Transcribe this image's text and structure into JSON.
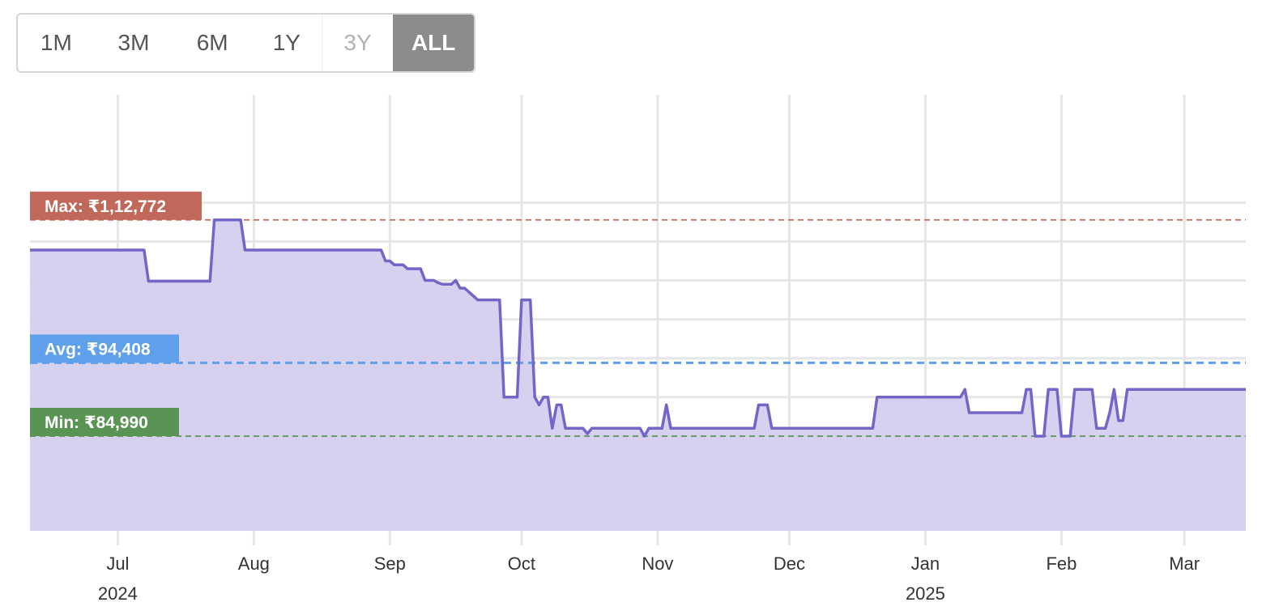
{
  "range_selector": {
    "buttons": [
      {
        "label": "1M",
        "state": "normal"
      },
      {
        "label": "3M",
        "state": "normal"
      },
      {
        "label": "6M",
        "state": "normal"
      },
      {
        "label": "1Y",
        "state": "normal"
      },
      {
        "label": "3Y",
        "state": "disabled"
      },
      {
        "label": "ALL",
        "state": "active"
      }
    ]
  },
  "colors": {
    "line": "#7366c9",
    "area": "#d4cfee",
    "grid": "#e6e6e6",
    "max": "#c0695a",
    "avg": "#5fa0ea",
    "min": "#5a9455",
    "button_active": "#8c8c8c"
  },
  "chart_data": {
    "type": "area",
    "currency": "₹",
    "xlim": [
      "2024-06-11",
      "2025-03-15"
    ],
    "ylim": [
      80000,
      117000
    ],
    "x_ticks": [
      {
        "date": "2024-07-01",
        "label": "Jul",
        "year": "2024"
      },
      {
        "date": "2024-08-01",
        "label": "Aug"
      },
      {
        "date": "2024-09-01",
        "label": "Sep"
      },
      {
        "date": "2024-10-01",
        "label": "Oct"
      },
      {
        "date": "2024-11-01",
        "label": "Nov"
      },
      {
        "date": "2024-12-01",
        "label": "Dec"
      },
      {
        "date": "2025-01-01",
        "label": "Jan",
        "year": "2025"
      },
      {
        "date": "2025-02-01",
        "label": "Feb"
      },
      {
        "date": "2025-03-01",
        "label": "Mar"
      }
    ],
    "y_gridlines": [
      85000,
      90000,
      95000,
      100000,
      105000,
      110000,
      115000
    ],
    "reference_lines": [
      {
        "name": "max",
        "label": "Max: ₹1,12,772",
        "value": 112772
      },
      {
        "name": "avg",
        "label": "Avg: ₹94,408",
        "value": 94408
      },
      {
        "name": "min",
        "label": "Min: ₹84,990",
        "value": 84990
      }
    ],
    "series": [
      {
        "points": [
          [
            "2024-06-11",
            108900
          ],
          [
            "2024-07-07",
            108900
          ],
          [
            "2024-07-08",
            104900
          ],
          [
            "2024-07-22",
            104900
          ],
          [
            "2024-07-23",
            112772
          ],
          [
            "2024-07-29",
            112772
          ],
          [
            "2024-07-30",
            108900
          ],
          [
            "2024-08-30",
            108900
          ],
          [
            "2024-08-31",
            107500
          ],
          [
            "2024-09-01",
            107500
          ],
          [
            "2024-09-02",
            107000
          ],
          [
            "2024-09-04",
            107000
          ],
          [
            "2024-09-05",
            106500
          ],
          [
            "2024-09-08",
            106500
          ],
          [
            "2024-09-09",
            105000
          ],
          [
            "2024-09-11",
            105000
          ],
          [
            "2024-09-12",
            104700
          ],
          [
            "2024-09-13",
            104500
          ],
          [
            "2024-09-15",
            104500
          ],
          [
            "2024-09-16",
            105000
          ],
          [
            "2024-09-17",
            104000
          ],
          [
            "2024-09-18",
            104000
          ],
          [
            "2024-09-21",
            102500
          ],
          [
            "2024-09-22",
            102500
          ],
          [
            "2024-09-26",
            102500
          ],
          [
            "2024-09-27",
            90000
          ],
          [
            "2024-09-28",
            90000
          ],
          [
            "2024-09-29",
            90000
          ],
          [
            "2024-09-30",
            90000
          ],
          [
            "2024-10-01",
            102500
          ],
          [
            "2024-10-03",
            102500
          ],
          [
            "2024-10-04",
            90000
          ],
          [
            "2024-10-05",
            89000
          ],
          [
            "2024-10-06",
            90000
          ],
          [
            "2024-10-07",
            90000
          ],
          [
            "2024-10-08",
            86000
          ],
          [
            "2024-10-09",
            89000
          ],
          [
            "2024-10-10",
            89000
          ],
          [
            "2024-10-11",
            86000
          ],
          [
            "2024-10-15",
            86000
          ],
          [
            "2024-10-16",
            85300
          ],
          [
            "2024-10-17",
            86000
          ],
          [
            "2024-10-28",
            86000
          ],
          [
            "2024-10-29",
            84990
          ],
          [
            "2024-10-30",
            86000
          ],
          [
            "2024-11-02",
            86000
          ],
          [
            "2024-11-03",
            89000
          ],
          [
            "2024-11-04",
            86000
          ],
          [
            "2024-11-23",
            86000
          ],
          [
            "2024-11-24",
            89000
          ],
          [
            "2024-11-26",
            89000
          ],
          [
            "2024-11-27",
            86000
          ],
          [
            "2024-12-20",
            86000
          ],
          [
            "2024-12-21",
            90000
          ],
          [
            "2025-01-09",
            90000
          ],
          [
            "2025-01-10",
            91000
          ],
          [
            "2025-01-11",
            88000
          ],
          [
            "2025-01-23",
            88000
          ],
          [
            "2025-01-24",
            91000
          ],
          [
            "2025-01-25",
            91000
          ],
          [
            "2025-01-26",
            84990
          ],
          [
            "2025-01-28",
            84990
          ],
          [
            "2025-01-29",
            91000
          ],
          [
            "2025-01-31",
            91000
          ],
          [
            "2025-02-01",
            84990
          ],
          [
            "2025-02-03",
            84990
          ],
          [
            "2025-02-04",
            91000
          ],
          [
            "2025-02-08",
            91000
          ],
          [
            "2025-02-09",
            86000
          ],
          [
            "2025-02-11",
            86000
          ],
          [
            "2025-02-12",
            88000
          ],
          [
            "2025-02-13",
            91000
          ],
          [
            "2025-02-14",
            87000
          ],
          [
            "2025-02-15",
            87000
          ],
          [
            "2025-02-16",
            91000
          ],
          [
            "2025-03-15",
            91000
          ]
        ]
      }
    ]
  }
}
